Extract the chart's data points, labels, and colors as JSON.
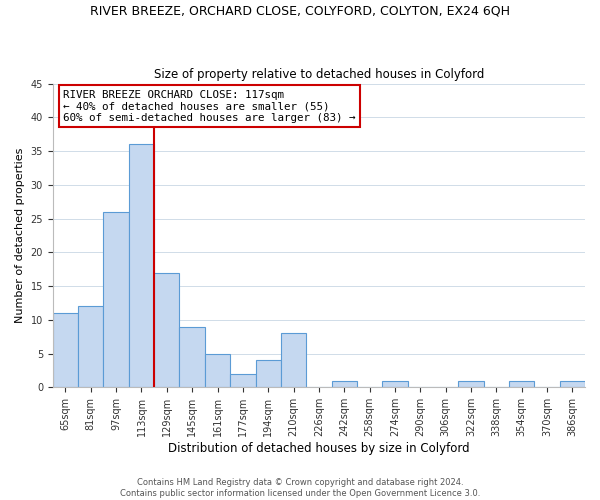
{
  "title": "RIVER BREEZE, ORCHARD CLOSE, COLYFORD, COLYTON, EX24 6QH",
  "subtitle": "Size of property relative to detached houses in Colyford",
  "xlabel": "Distribution of detached houses by size in Colyford",
  "ylabel": "Number of detached properties",
  "bin_labels": [
    "65sqm",
    "81sqm",
    "97sqm",
    "113sqm",
    "129sqm",
    "145sqm",
    "161sqm",
    "177sqm",
    "194sqm",
    "210sqm",
    "226sqm",
    "242sqm",
    "258sqm",
    "274sqm",
    "290sqm",
    "306sqm",
    "322sqm",
    "338sqm",
    "354sqm",
    "370sqm",
    "386sqm"
  ],
  "bar_values": [
    11,
    12,
    26,
    36,
    17,
    9,
    5,
    2,
    4,
    8,
    0,
    1,
    0,
    1,
    0,
    0,
    1,
    0,
    1,
    0,
    1
  ],
  "bar_color": "#c5d8f0",
  "bar_edge_color": "#5b9bd5",
  "ref_line_x": 3.5,
  "ref_line_color": "#cc0000",
  "ylim": [
    0,
    45
  ],
  "yticks": [
    0,
    5,
    10,
    15,
    20,
    25,
    30,
    35,
    40,
    45
  ],
  "annotation_lines": [
    "RIVER BREEZE ORCHARD CLOSE: 117sqm",
    "← 40% of detached houses are smaller (55)",
    "60% of semi-detached houses are larger (83) →"
  ],
  "annotation_box_color": "#ffffff",
  "annotation_box_edge_color": "#cc0000",
  "footer_lines": [
    "Contains HM Land Registry data © Crown copyright and database right 2024.",
    "Contains public sector information licensed under the Open Government Licence 3.0."
  ],
  "background_color": "#ffffff",
  "grid_color": "#d0dce8"
}
